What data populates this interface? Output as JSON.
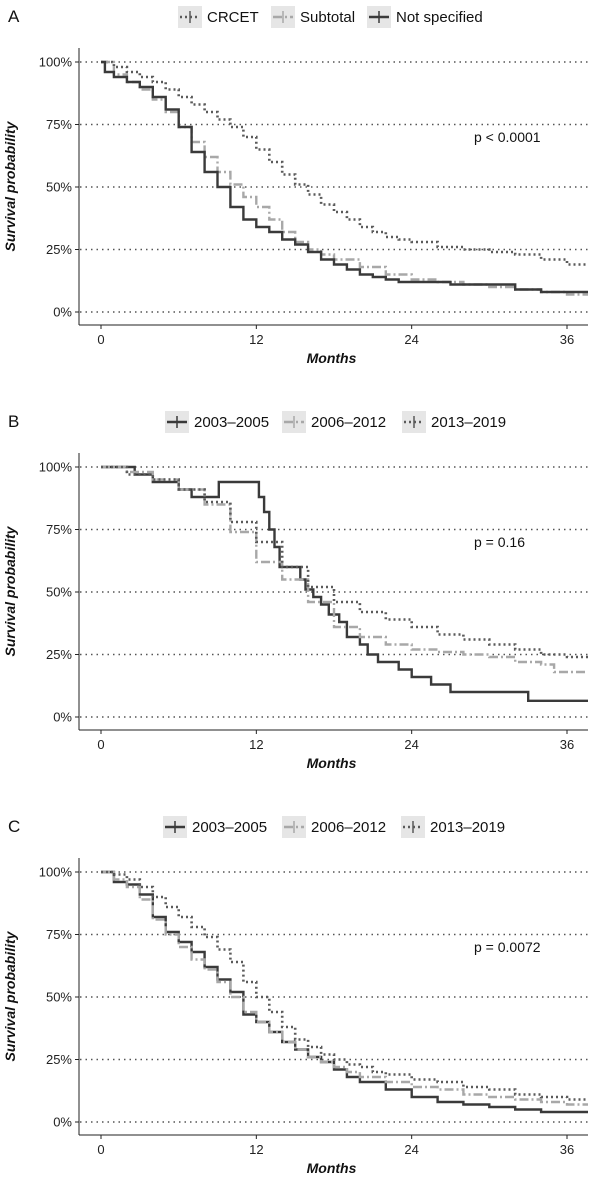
{
  "colors": {
    "dark": "#3a3a3a",
    "light": "#a8a8a8",
    "dotted": "#5a5a5a",
    "grid": "#555555"
  },
  "chart_data": [
    {
      "panel": "A",
      "type": "line",
      "xlabel": "Months",
      "ylabel": "Survival probability",
      "xticks": [
        "0",
        "12",
        "24",
        "36"
      ],
      "yticks": [
        "0%",
        "25%",
        "50%",
        "75%",
        "100%"
      ],
      "xlim": [
        0,
        38
      ],
      "ylim": [
        0,
        1
      ],
      "grid": "horizontal",
      "legend_position": "top",
      "annotation": "p < 0.0001",
      "series": [
        {
          "name": "CRCET",
          "style": "dotted",
          "points": [
            [
              0,
              1.0
            ],
            [
              1,
              0.98
            ],
            [
              2,
              0.96
            ],
            [
              3,
              0.94
            ],
            [
              4,
              0.92
            ],
            [
              5,
              0.89
            ],
            [
              6,
              0.86
            ],
            [
              7,
              0.83
            ],
            [
              8,
              0.8
            ],
            [
              9,
              0.77
            ],
            [
              10,
              0.74
            ],
            [
              11,
              0.7
            ],
            [
              12,
              0.65
            ],
            [
              13,
              0.6
            ],
            [
              14,
              0.55
            ],
            [
              15,
              0.51
            ],
            [
              16,
              0.47
            ],
            [
              17,
              0.43
            ],
            [
              18,
              0.4
            ],
            [
              19,
              0.37
            ],
            [
              20,
              0.34
            ],
            [
              21,
              0.32
            ],
            [
              22,
              0.3
            ],
            [
              23,
              0.29
            ],
            [
              24,
              0.28
            ],
            [
              26,
              0.26
            ],
            [
              28,
              0.25
            ],
            [
              30,
              0.24
            ],
            [
              32,
              0.23
            ],
            [
              34,
              0.21
            ],
            [
              36,
              0.19
            ],
            [
              38,
              0.18
            ]
          ]
        },
        {
          "name": "Subtotal",
          "style": "dashdot",
          "points": [
            [
              0,
              1.0
            ],
            [
              1,
              0.95
            ],
            [
              2,
              0.92
            ],
            [
              3,
              0.89
            ],
            [
              4,
              0.85
            ],
            [
              5,
              0.8
            ],
            [
              6,
              0.74
            ],
            [
              7,
              0.68
            ],
            [
              8,
              0.62
            ],
            [
              9,
              0.56
            ],
            [
              10,
              0.51
            ],
            [
              11,
              0.46
            ],
            [
              12,
              0.42
            ],
            [
              13,
              0.37
            ],
            [
              14,
              0.32
            ],
            [
              15,
              0.28
            ],
            [
              16,
              0.25
            ],
            [
              17,
              0.23
            ],
            [
              18,
              0.21
            ],
            [
              20,
              0.18
            ],
            [
              22,
              0.15
            ],
            [
              24,
              0.13
            ],
            [
              26,
              0.12
            ],
            [
              28,
              0.11
            ],
            [
              30,
              0.1
            ],
            [
              32,
              0.09
            ],
            [
              34,
              0.08
            ],
            [
              36,
              0.07
            ],
            [
              38,
              0.06
            ]
          ]
        },
        {
          "name": "Not specified",
          "style": "solid",
          "points": [
            [
              0,
              1.0
            ],
            [
              0.3,
              0.96
            ],
            [
              1,
              0.94
            ],
            [
              2,
              0.92
            ],
            [
              3,
              0.9
            ],
            [
              4,
              0.86
            ],
            [
              5,
              0.81
            ],
            [
              6,
              0.74
            ],
            [
              7,
              0.64
            ],
            [
              8,
              0.56
            ],
            [
              9,
              0.5
            ],
            [
              10,
              0.42
            ],
            [
              11,
              0.37
            ],
            [
              12,
              0.34
            ],
            [
              13,
              0.32
            ],
            [
              14,
              0.29
            ],
            [
              15,
              0.27
            ],
            [
              16,
              0.24
            ],
            [
              17,
              0.21
            ],
            [
              18,
              0.19
            ],
            [
              19,
              0.17
            ],
            [
              20,
              0.15
            ],
            [
              21,
              0.14
            ],
            [
              22,
              0.13
            ],
            [
              23,
              0.12
            ],
            [
              24,
              0.12
            ],
            [
              27,
              0.11
            ],
            [
              30,
              0.11
            ],
            [
              32,
              0.09
            ],
            [
              34,
              0.08
            ],
            [
              38,
              0.08
            ]
          ]
        }
      ]
    },
    {
      "panel": "B",
      "type": "line",
      "xlabel": "Months",
      "ylabel": "Survival probability",
      "xticks": [
        "0",
        "12",
        "24",
        "36"
      ],
      "yticks": [
        "0%",
        "25%",
        "50%",
        "75%",
        "100%"
      ],
      "xlim": [
        0,
        38
      ],
      "ylim": [
        0,
        1
      ],
      "grid": "horizontal",
      "legend_position": "top",
      "annotation": "p = 0.16",
      "series": [
        {
          "name": "2003–2005",
          "style": "solid",
          "points": [
            [
              0,
              1.0
            ],
            [
              2.5,
              1.0
            ],
            [
              2.6,
              0.97
            ],
            [
              4,
              0.94
            ],
            [
              6,
              0.91
            ],
            [
              7,
              0.88
            ],
            [
              9,
              0.88
            ],
            [
              9.1,
              0.94
            ],
            [
              12,
              0.94
            ],
            [
              12.2,
              0.88
            ],
            [
              12.6,
              0.82
            ],
            [
              13,
              0.75
            ],
            [
              13.4,
              0.68
            ],
            [
              13.8,
              0.6
            ],
            [
              15,
              0.6
            ],
            [
              15.4,
              0.55
            ],
            [
              15.8,
              0.51
            ],
            [
              16.4,
              0.48
            ],
            [
              17,
              0.45
            ],
            [
              17.6,
              0.41
            ],
            [
              18.4,
              0.38
            ],
            [
              19,
              0.32
            ],
            [
              20,
              0.29
            ],
            [
              20.6,
              0.25
            ],
            [
              21.4,
              0.22
            ],
            [
              23,
              0.19
            ],
            [
              24,
              0.16
            ],
            [
              25.5,
              0.13
            ],
            [
              27,
              0.1
            ],
            [
              30,
              0.1
            ],
            [
              33,
              0.065
            ],
            [
              38,
              0.065
            ]
          ]
        },
        {
          "name": "2006–2012",
          "style": "dashdot",
          "points": [
            [
              0,
              1.0
            ],
            [
              2,
              0.98
            ],
            [
              4,
              0.95
            ],
            [
              6,
              0.91
            ],
            [
              8,
              0.85
            ],
            [
              10,
              0.74
            ],
            [
              12,
              0.62
            ],
            [
              14,
              0.55
            ],
            [
              16,
              0.46
            ],
            [
              18,
              0.36
            ],
            [
              20,
              0.32
            ],
            [
              22,
              0.29
            ],
            [
              24,
              0.27
            ],
            [
              26,
              0.26
            ],
            [
              28,
              0.25
            ],
            [
              30,
              0.24
            ],
            [
              32,
              0.22
            ],
            [
              34,
              0.21
            ],
            [
              35,
              0.18
            ],
            [
              38,
              0.17
            ]
          ]
        },
        {
          "name": "2013–2019",
          "style": "dotted",
          "points": [
            [
              0,
              1.0
            ],
            [
              2,
              0.97
            ],
            [
              4,
              0.95
            ],
            [
              6,
              0.91
            ],
            [
              8,
              0.86
            ],
            [
              10,
              0.78
            ],
            [
              12,
              0.7
            ],
            [
              14,
              0.6
            ],
            [
              16,
              0.52
            ],
            [
              18,
              0.46
            ],
            [
              20,
              0.42
            ],
            [
              22,
              0.39
            ],
            [
              24,
              0.36
            ],
            [
              26,
              0.33
            ],
            [
              28,
              0.31
            ],
            [
              30,
              0.29
            ],
            [
              32,
              0.27
            ],
            [
              34,
              0.25
            ],
            [
              36,
              0.24
            ],
            [
              38,
              0.23
            ]
          ]
        }
      ]
    },
    {
      "panel": "C",
      "type": "line",
      "xlabel": "Months",
      "ylabel": "Survival probability",
      "xticks": [
        "0",
        "12",
        "24",
        "36"
      ],
      "yticks": [
        "0%",
        "25%",
        "50%",
        "75%",
        "100%"
      ],
      "xlim": [
        0,
        38
      ],
      "ylim": [
        0,
        1
      ],
      "grid": "horizontal",
      "legend_position": "top",
      "annotation": "p = 0.0072",
      "series": [
        {
          "name": "2003–2005",
          "style": "solid",
          "points": [
            [
              0,
              1.0
            ],
            [
              1,
              0.96
            ],
            [
              2,
              0.95
            ],
            [
              3,
              0.91
            ],
            [
              4,
              0.82
            ],
            [
              5,
              0.76
            ],
            [
              6,
              0.72
            ],
            [
              7,
              0.68
            ],
            [
              8,
              0.62
            ],
            [
              9,
              0.57
            ],
            [
              10,
              0.52
            ],
            [
              11,
              0.43
            ],
            [
              12,
              0.4
            ],
            [
              13,
              0.36
            ],
            [
              14,
              0.32
            ],
            [
              15,
              0.29
            ],
            [
              16,
              0.26
            ],
            [
              17,
              0.24
            ],
            [
              18,
              0.21
            ],
            [
              19,
              0.18
            ],
            [
              20,
              0.16
            ],
            [
              22,
              0.13
            ],
            [
              24,
              0.1
            ],
            [
              26,
              0.08
            ],
            [
              28,
              0.07
            ],
            [
              30,
              0.06
            ],
            [
              32,
              0.05
            ],
            [
              34,
              0.04
            ],
            [
              38,
              0.03
            ]
          ]
        },
        {
          "name": "2006–2012",
          "style": "dashdot",
          "points": [
            [
              0,
              1.0
            ],
            [
              1,
              0.97
            ],
            [
              2,
              0.94
            ],
            [
              3,
              0.89
            ],
            [
              4,
              0.81
            ],
            [
              5,
              0.75
            ],
            [
              6,
              0.7
            ],
            [
              7,
              0.65
            ],
            [
              8,
              0.61
            ],
            [
              9,
              0.56
            ],
            [
              10,
              0.5
            ],
            [
              11,
              0.44
            ],
            [
              12,
              0.4
            ],
            [
              13,
              0.36
            ],
            [
              14,
              0.32
            ],
            [
              15,
              0.29
            ],
            [
              16,
              0.26
            ],
            [
              17,
              0.24
            ],
            [
              18,
              0.22
            ],
            [
              19,
              0.2
            ],
            [
              20,
              0.18
            ],
            [
              22,
              0.16
            ],
            [
              24,
              0.14
            ],
            [
              26,
              0.13
            ],
            [
              28,
              0.11
            ],
            [
              30,
              0.1
            ],
            [
              32,
              0.09
            ],
            [
              34,
              0.08
            ],
            [
              36,
              0.07
            ],
            [
              38,
              0.06
            ]
          ]
        },
        {
          "name": "2013–2019",
          "style": "dotted",
          "points": [
            [
              0,
              1.0
            ],
            [
              1,
              0.99
            ],
            [
              2,
              0.97
            ],
            [
              3,
              0.94
            ],
            [
              4,
              0.9
            ],
            [
              5,
              0.86
            ],
            [
              6,
              0.82
            ],
            [
              7,
              0.78
            ],
            [
              8,
              0.74
            ],
            [
              9,
              0.69
            ],
            [
              10,
              0.64
            ],
            [
              11,
              0.56
            ],
            [
              12,
              0.5
            ],
            [
              13,
              0.44
            ],
            [
              14,
              0.38
            ],
            [
              15,
              0.33
            ],
            [
              16,
              0.3
            ],
            [
              17,
              0.27
            ],
            [
              18,
              0.25
            ],
            [
              19,
              0.23
            ],
            [
              20,
              0.22
            ],
            [
              21,
              0.2
            ],
            [
              22,
              0.19
            ],
            [
              24,
              0.17
            ],
            [
              26,
              0.16
            ],
            [
              28,
              0.14
            ],
            [
              30,
              0.13
            ],
            [
              32,
              0.11
            ],
            [
              34,
              0.1
            ],
            [
              36,
              0.09
            ],
            [
              38,
              0.07
            ]
          ]
        }
      ]
    }
  ]
}
